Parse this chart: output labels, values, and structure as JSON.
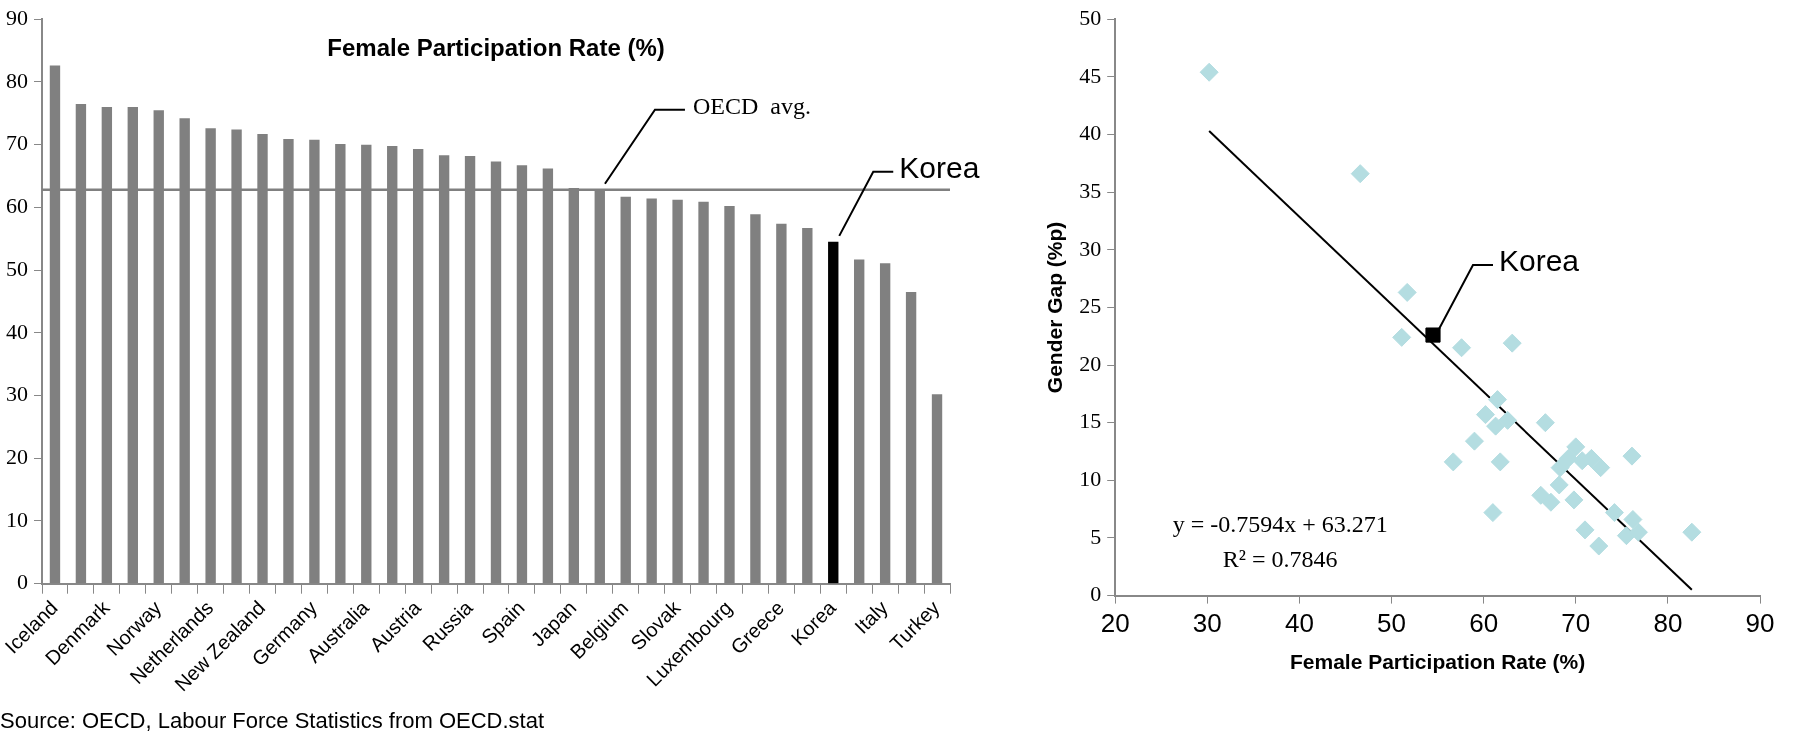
{
  "chart_data": [
    {
      "type": "bar",
      "title": "Female Participation Rate (%)",
      "categories": [
        "Iceland",
        null,
        "Denmark",
        null,
        "Norway",
        null,
        "Netherlands",
        null,
        "New Zealand",
        null,
        "Germany",
        null,
        "Australia",
        null,
        "Austria",
        null,
        "Russia",
        null,
        "Spain",
        null,
        "Japan",
        null,
        "Belgium",
        null,
        "Slovak",
        null,
        "Luxembourg",
        null,
        "Greece",
        null,
        "Korea",
        null,
        "Italy",
        null,
        "Turkey"
      ],
      "values": [
        82.6,
        76.5,
        76.0,
        76.0,
        75.5,
        74.2,
        72.6,
        72.4,
        71.7,
        70.9,
        70.8,
        70.1,
        70.0,
        69.8,
        69.3,
        68.3,
        68.2,
        67.3,
        66.7,
        66.2,
        63.1,
        62.6,
        61.7,
        61.4,
        61.2,
        60.9,
        60.2,
        58.9,
        57.4,
        56.7,
        54.5,
        51.7,
        51.1,
        46.5,
        30.2
      ],
      "colors": [
        "#808080",
        "#808080",
        "#808080",
        "#808080",
        "#808080",
        "#808080",
        "#808080",
        "#808080",
        "#808080",
        "#808080",
        "#808080",
        "#808080",
        "#808080",
        "#808080",
        "#808080",
        "#808080",
        "#808080",
        "#808080",
        "#808080",
        "#808080",
        "#808080",
        "#808080",
        "#808080",
        "#808080",
        "#808080",
        "#808080",
        "#808080",
        "#808080",
        "#808080",
        "#808080",
        "#000000",
        "#808080",
        "#808080",
        "#808080",
        "#808080"
      ],
      "ylim": [
        0,
        90
      ],
      "yticks": [
        0,
        10,
        20,
        30,
        40,
        50,
        60,
        70,
        80,
        90
      ],
      "ref_lines": [
        {
          "axis": "y",
          "value": 62.8,
          "label": "OECD  avg.",
          "color": "#808080"
        }
      ],
      "annotations": [
        {
          "text": "Korea",
          "x": "Korea",
          "y": 54.5
        },
        "Source: OECD, Labour Force Statistics from OECD.stat"
      ]
    },
    {
      "type": "scatter",
      "xlabel": "Female Participation Rate (%)",
      "ylabel": "Gender Gap (%p)",
      "xlim": [
        20,
        90
      ],
      "xticks": [
        20,
        30,
        40,
        50,
        60,
        70,
        80,
        90
      ],
      "ylim": [
        0,
        50
      ],
      "yticks": [
        0,
        5,
        10,
        15,
        20,
        25,
        30,
        35,
        40,
        45,
        50
      ],
      "marker": "diamond",
      "series": [
        {
          "color": "#b4dde1",
          "x": [
            30.2,
            46.6,
            51.7,
            51.1,
            57.6,
            63.1,
            61.5,
            60.2,
            61.3,
            62.6,
            66.7,
            59.0,
            56.7,
            61.8,
            61.0,
            70.0,
            69.2,
            70.7,
            71.7,
            72.7,
            68.3,
            76.1,
            68.2,
            66.2,
            67.3,
            69.8,
            74.2,
            76.2,
            71.0,
            72.5,
            75.5,
            76.8,
            82.6
          ],
          "values": [
            45.4,
            36.6,
            26.3,
            22.4,
            21.5,
            21.9,
            17.0,
            15.7,
            14.7,
            15.2,
            15.0,
            13.4,
            11.6,
            11.6,
            7.2,
            12.9,
            11.9,
            11.7,
            11.9,
            11.1,
            11.1,
            12.1,
            9.6,
            8.7,
            8.1,
            8.3,
            7.2,
            6.6,
            5.7,
            4.3,
            5.2,
            5.5,
            5.5
          ]
        },
        {
          "color": "#000000",
          "marker": "square",
          "x": [
            54.5
          ],
          "values": [
            22.6
          ]
        },
        {
          "type": "line",
          "color": "#000000",
          "marker": "none",
          "x": [
            30.2,
            82.6
          ],
          "values": [
            40.3,
            0.5
          ]
        }
      ],
      "annotations": [
        {
          "text": "Korea",
          "x": 54.5,
          "y": 22.6
        },
        "y = -0.7594x + 63.271",
        "R² = 0.7846"
      ]
    }
  ]
}
